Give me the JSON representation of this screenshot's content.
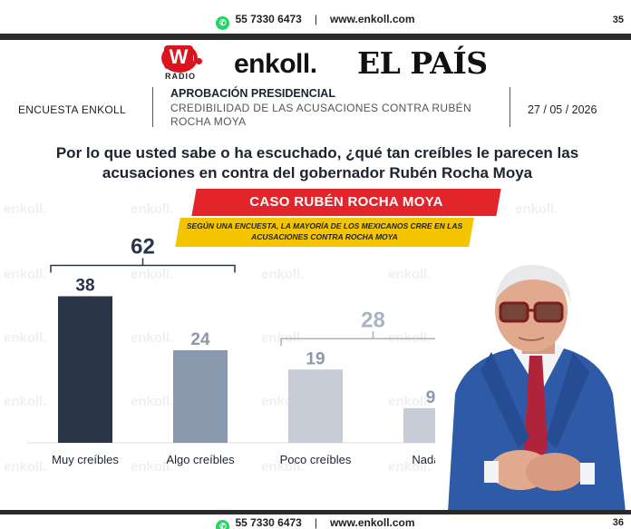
{
  "top_bar": {
    "phone": "55 7330 6473",
    "separator": "|",
    "website": "www.enkoll.com",
    "page_number": "35"
  },
  "logos": {
    "w_mark": "W",
    "radio": "RADIO",
    "enkoll": "enkoll.",
    "elpais": "EL PAÍS"
  },
  "header": {
    "survey": "ENCUESTA ENKOLL",
    "title": "APROBACIÓN PRESIDENCIAL",
    "subtitle": "CREDIBILIDAD DE LAS ACUSACIONES CONTRA RUBÉN ROCHA MOYA",
    "date": "27 / 05 / 2026"
  },
  "question": "Por lo que usted sabe o ha escuchado, ¿qué tan creíbles le parecen las acusaciones en contra del gobernador Rubén Rocha Moya",
  "banner": {
    "title": "CASO RUBÉN ROCHA MOYA",
    "subtitle": "SEGÚN UNA ENCUESTA, LA MAYORÍA DE LOS MEXICANOS CRRE EN LAS ACUSACIONES CONTRA ROCHA MOYA"
  },
  "watermark": "enkoll.",
  "chart_data": {
    "type": "bar",
    "categories": [
      "Muy creíbles",
      "Algo creíbles",
      "Poco creíbles",
      "Nada c"
    ],
    "values": [
      38,
      24,
      19,
      9
    ],
    "value_labels": [
      "38",
      "24",
      "19",
      "9"
    ],
    "groups": [
      {
        "label": "62",
        "from": 0,
        "to": 1
      },
      {
        "label": "28",
        "from": 2,
        "to": 3
      }
    ],
    "colors": [
      "#2a3447",
      "#8a98ae",
      "#c7cdd6",
      "#c7cdd6"
    ],
    "group_colors": [
      "#2a3447",
      "#aab3c2"
    ],
    "ylim": [
      0,
      40
    ],
    "grid": false,
    "legend": "none"
  },
  "bottom_bar": {
    "phone": "55 7330 6473",
    "separator": "|",
    "website": "www.enkoll.com",
    "page_number": "36"
  },
  "colors": {
    "red": "#e2242b",
    "yellow": "#f5c400",
    "navy": "#1c2430",
    "whatsapp": "#25d366"
  },
  "icons": {
    "contact": "whatsapp-icon",
    "photo": "person-photo"
  }
}
